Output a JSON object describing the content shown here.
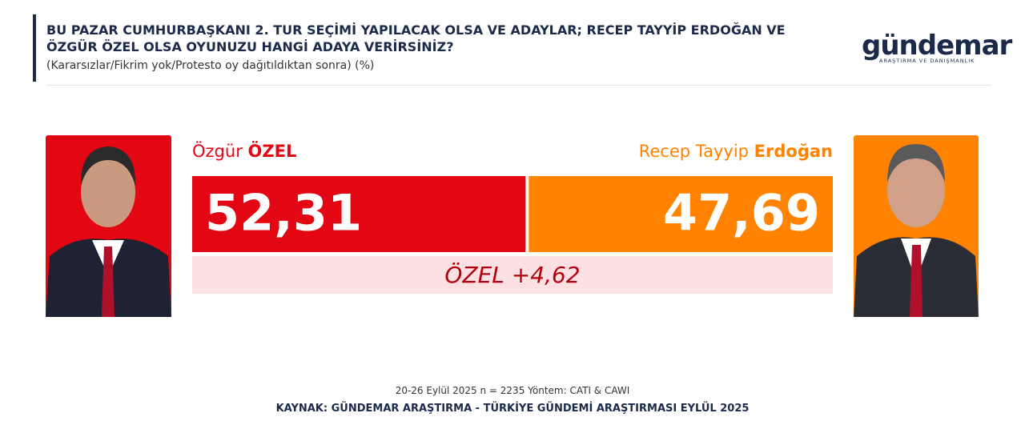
{
  "header": {
    "title": "BU PAZAR CUMHURBAŞKANI 2. TUR SEÇİMİ YAPILACAK OLSA VE ADAYLAR; RECEP TAYYİP ERDOĞAN VE ÖZGÜR ÖZEL OLSA OYUNUZU HANGİ ADAYA VERİRSİNİZ?",
    "subtitle": "(Kararsızlar/Fikrim yok/Protesto oy dağıtıldıktan sonra) (%)"
  },
  "logo": {
    "name": "gündemar",
    "tagline": "ARAŞTIRMA VE DANIŞMANLIK"
  },
  "chart_data": {
    "type": "bar",
    "stacked": true,
    "xlim": [
      0,
      100
    ],
    "series": [
      {
        "name": "Özgür ÖZEL",
        "color": "#e30613",
        "values": [
          52.31
        ],
        "value_labels": [
          "52,31"
        ]
      },
      {
        "name": "Recep Tayyip Erdoğan",
        "color": "#ff8200",
        "values": [
          47.69
        ],
        "value_labels": [
          "47,69"
        ]
      }
    ],
    "annotation": "ÖZEL +4,62"
  },
  "footer": {
    "note": "20-26 Eylül 2025 n = 2235 Yöntem: CATI & CAWI",
    "source": "KAYNAK: GÜNDEMAR ARAŞTIRMA - TÜRKİYE GÜNDEMİ ARAŞTIRMASI EYLÜL 2025"
  }
}
